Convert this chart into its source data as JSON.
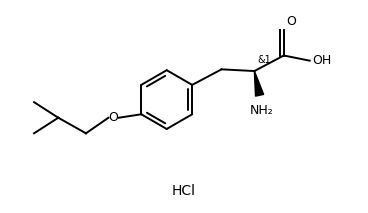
{
  "background_color": "#ffffff",
  "line_color": "#000000",
  "line_width": 1.4,
  "text_color": "#000000",
  "figsize": [
    3.68,
    2.13
  ],
  "dpi": 100,
  "hcl_label": "HCl",
  "stereo_label": "&1",
  "nh2_label": "NH₂",
  "oh_label": "OH",
  "o_label": "O",
  "o_sym": "O",
  "font_size": 9,
  "font_size_small": 7
}
